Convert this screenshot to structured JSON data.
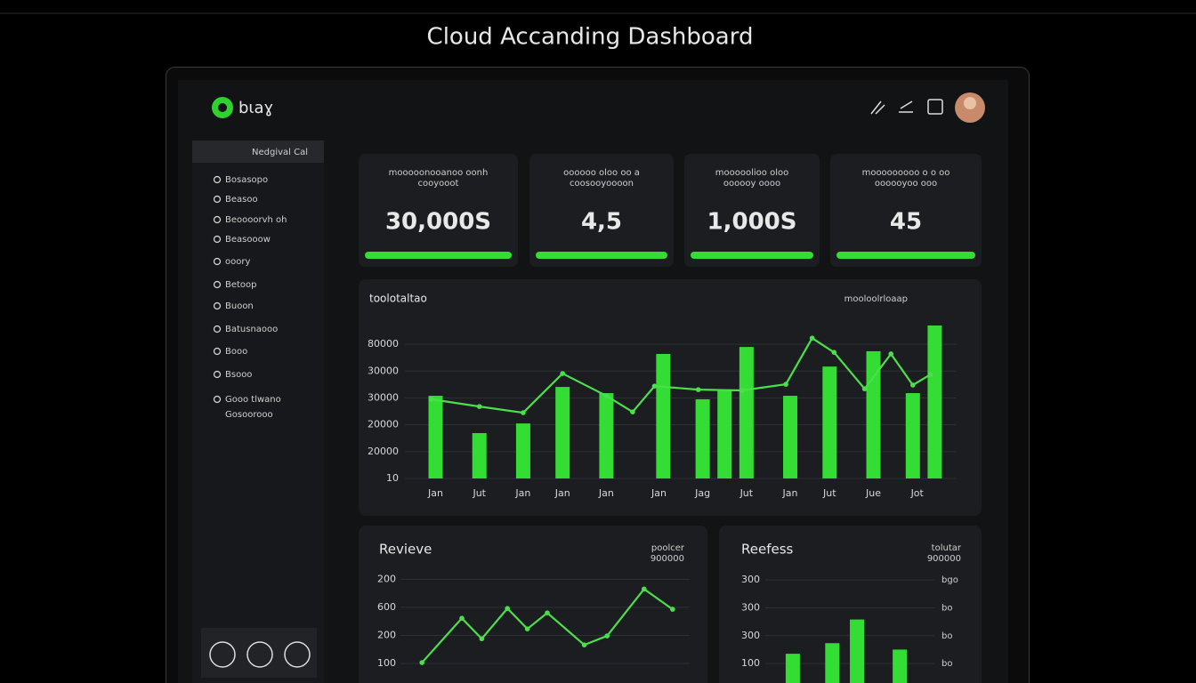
{
  "page_title": "Cloud Accanding Dashboard",
  "brand": "bιaɣ",
  "sidebar": {
    "header": "Nedgival Cal",
    "items": [
      "Bosasopo",
      "Beasoo",
      "Beoooorvh oh",
      "Beasooow",
      "ooory",
      "Betoop",
      "Buoon",
      "Batusnaooo",
      "Booo",
      "Bsooo",
      "Gooo tlwano"
    ],
    "item_extra": "Gosoorooo"
  },
  "kpis": [
    {
      "label": "mooooonooanoo oonh",
      "sublabel": "cooyooot",
      "value": "30,000S"
    },
    {
      "label": "oooooo oloo oo a",
      "sublabel": "coosooyoooon",
      "value": "4,5"
    },
    {
      "label": "mooooolioo oloo",
      "sublabel": "oooooy oooo",
      "value": "1,000S"
    },
    {
      "label": "mooooooooo o o oo",
      "sublabel": "oooooyoo ooo",
      "value": "45"
    }
  ],
  "chart_data": [
    {
      "type": "bar-line",
      "title": "toolotaltao",
      "legend_text": "mooloolrloaap",
      "xlim": [
        -0.6,
        11.9
      ],
      "xticks": [
        {
          "value": 0,
          "label": "Jan"
        },
        {
          "value": 1,
          "label": "Jut"
        },
        {
          "value": 2,
          "label": "Jan"
        },
        {
          "value": 2.9,
          "label": "Jan"
        },
        {
          "value": 3.9,
          "label": "Jan"
        },
        {
          "value": 5.1,
          "label": "Jan"
        },
        {
          "value": 6.1,
          "label": "Jag"
        },
        {
          "value": 7.1,
          "label": "Jut"
        },
        {
          "value": 8.1,
          "label": "Jan"
        },
        {
          "value": 9,
          "label": "Jut"
        },
        {
          "value": 10,
          "label": "Jue"
        },
        {
          "value": 11,
          "label": "Jot"
        }
      ],
      "ylim": [
        0,
        5.7
      ],
      "yticks": [
        {
          "value": 5,
          "label": "80000"
        },
        {
          "value": 4,
          "label": "30000"
        },
        {
          "value": 3,
          "label": "30000"
        },
        {
          "value": 2,
          "label": "20000"
        },
        {
          "value": 1,
          "label": "20000"
        },
        {
          "value": 0,
          "label": "10"
        }
      ],
      "grid": true,
      "bars": {
        "color": "#33dd33",
        "x": [
          0,
          1,
          2,
          2.9,
          3.9,
          5.2,
          6.1,
          6.6,
          7.1,
          8.1,
          9,
          10,
          10.9,
          11.4
        ],
        "values": [
          3.08,
          1.69,
          2.05,
          3.41,
          3.18,
          4.64,
          2.95,
          3.31,
          4.9,
          3.08,
          4.17,
          4.74,
          3.18,
          5.7
        ]
      },
      "line": {
        "color": "#4be04b",
        "x": [
          -0.1,
          1,
          2,
          2.9,
          3.9,
          4.5,
          5,
          6,
          7,
          8,
          8.6,
          9.1,
          9.8,
          10.4,
          10.9,
          11.3
        ],
        "values": [
          2.95,
          2.68,
          2.45,
          3.91,
          3.08,
          2.48,
          3.44,
          3.31,
          3.28,
          3.51,
          5.23,
          4.7,
          3.34,
          4.64,
          3.48,
          3.87
        ]
      }
    },
    {
      "type": "line",
      "title": "Revieve",
      "legend_text": [
        "poolcer",
        "900000"
      ],
      "xlim": [
        0,
        10
      ],
      "ylim": [
        0,
        3.2
      ],
      "yticks": [
        {
          "value": 3,
          "label": "200"
        },
        {
          "value": 2,
          "label": "600"
        },
        {
          "value": 1,
          "label": "200"
        },
        {
          "value": 0,
          "label": "100"
        }
      ],
      "grid": true,
      "line": {
        "color": "#4be04b",
        "x": [
          0.6,
          2,
          2.7,
          3.6,
          4.3,
          5,
          6.3,
          7.1,
          8.4,
          9.4
        ],
        "values": [
          0.03,
          1.61,
          0.88,
          1.96,
          1.23,
          1.8,
          0.66,
          0.98,
          2.65,
          1.93
        ]
      }
    },
    {
      "type": "bar",
      "title": "Reefess",
      "legend_text": [
        "tolutar",
        "900000"
      ],
      "xlim": [
        0,
        10
      ],
      "ylim": [
        -0.7,
        3.1
      ],
      "yticks": [
        {
          "value": 3,
          "label": "300"
        },
        {
          "value": 2,
          "label": "300"
        },
        {
          "value": 1,
          "label": "300"
        },
        {
          "value": 0,
          "label": "100"
        }
      ],
      "right_labels": [
        "bgo",
        "bo",
        "bo",
        "bo"
      ],
      "grid": true,
      "bars": {
        "color": "#33dd33",
        "x": [
          1.4,
          3.8,
          5.3,
          7.9
        ],
        "values": [
          0.35,
          0.73,
          1.58,
          0.5
        ]
      }
    }
  ]
}
